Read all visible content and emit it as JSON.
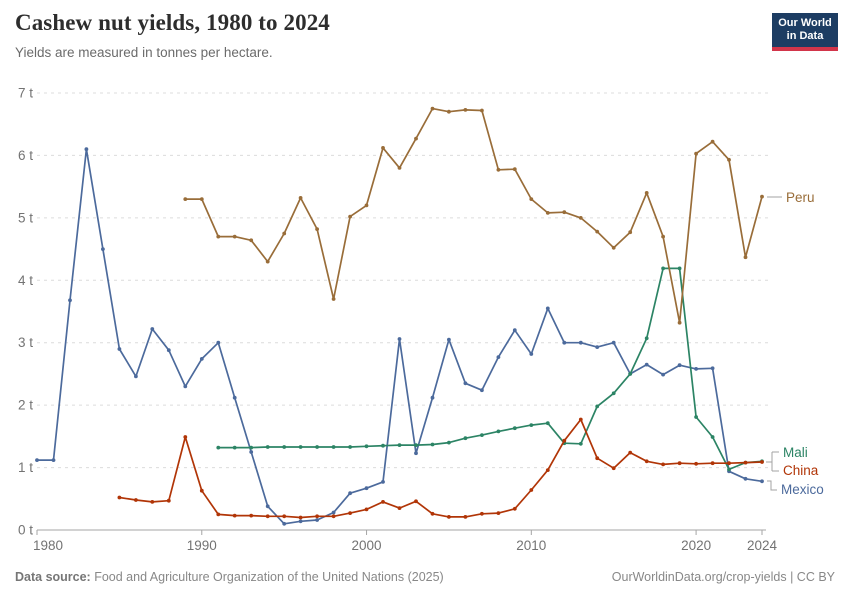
{
  "header": {
    "title": "Cashew nut yields, 1980 to 2024",
    "subtitle": "Yields are measured in tonnes per hectare.",
    "logo": {
      "line1": "Our World",
      "line2": "in Data",
      "bg_color": "#1d3d63",
      "accent_color": "#d2354a"
    }
  },
  "chart_data": {
    "type": "line",
    "title": "Cashew nut yields, 1980 to 2024",
    "unit": "tonnes per hectare",
    "xlabel": "",
    "ylabel": "",
    "xlim": [
      1980,
      2024
    ],
    "ylim": [
      0,
      7
    ],
    "grid": "horizontal dashed",
    "legend_position": "line-end labels (right side)",
    "x_ticks": [
      {
        "value": 1980,
        "label": "1980"
      },
      {
        "value": 1990,
        "label": "1990"
      },
      {
        "value": 2000,
        "label": "2000"
      },
      {
        "value": 2010,
        "label": "2010"
      },
      {
        "value": 2020,
        "label": "2020"
      },
      {
        "value": 2024,
        "label": "2024"
      }
    ],
    "y_ticks": [
      {
        "value": 0,
        "label": "0 t"
      },
      {
        "value": 1,
        "label": "1 t"
      },
      {
        "value": 2,
        "label": "2 t"
      },
      {
        "value": 3,
        "label": "3 t"
      },
      {
        "value": 4,
        "label": "4 t"
      },
      {
        "value": 5,
        "label": "5 t"
      },
      {
        "value": 6,
        "label": "6 t"
      },
      {
        "value": 7,
        "label": "7 t"
      }
    ],
    "series": [
      {
        "name": "Mexico",
        "color": "#4C6A9C",
        "points": [
          [
            1980,
            1.12
          ],
          [
            1981,
            1.12
          ],
          [
            1982,
            3.68
          ],
          [
            1983,
            6.1
          ],
          [
            1984,
            4.5
          ],
          [
            1985,
            2.9
          ],
          [
            1986,
            2.46
          ],
          [
            1987,
            3.22
          ],
          [
            1988,
            2.88
          ],
          [
            1989,
            2.3
          ],
          [
            1990,
            2.74
          ],
          [
            1991,
            3.0
          ],
          [
            1992,
            2.12
          ],
          [
            1993,
            1.25
          ],
          [
            1994,
            0.38
          ],
          [
            1995,
            0.1
          ],
          [
            1996,
            0.14
          ],
          [
            1997,
            0.16
          ],
          [
            1998,
            0.28
          ],
          [
            1999,
            0.59
          ],
          [
            2000,
            0.67
          ],
          [
            2001,
            0.77
          ],
          [
            2002,
            3.06
          ],
          [
            2003,
            1.23
          ],
          [
            2004,
            2.12
          ],
          [
            2005,
            3.05
          ],
          [
            2006,
            2.35
          ],
          [
            2007,
            2.24
          ],
          [
            2008,
            2.77
          ],
          [
            2009,
            3.2
          ],
          [
            2010,
            2.82
          ],
          [
            2011,
            3.55
          ],
          [
            2012,
            3.0
          ],
          [
            2013,
            3.0
          ],
          [
            2014,
            2.93
          ],
          [
            2015,
            3.0
          ],
          [
            2016,
            2.5
          ],
          [
            2017,
            2.65
          ],
          [
            2018,
            2.49
          ],
          [
            2019,
            2.64
          ],
          [
            2020,
            2.58
          ],
          [
            2021,
            2.59
          ],
          [
            2022,
            0.94
          ],
          [
            2023,
            0.82
          ],
          [
            2024,
            0.78
          ]
        ]
      },
      {
        "name": "Mali",
        "color": "#2C8465",
        "points": [
          [
            1991,
            1.32
          ],
          [
            1992,
            1.32
          ],
          [
            1993,
            1.32
          ],
          [
            1994,
            1.33
          ],
          [
            1995,
            1.33
          ],
          [
            1996,
            1.33
          ],
          [
            1997,
            1.33
          ],
          [
            1998,
            1.33
          ],
          [
            1999,
            1.33
          ],
          [
            2000,
            1.34
          ],
          [
            2001,
            1.35
          ],
          [
            2002,
            1.36
          ],
          [
            2003,
            1.36
          ],
          [
            2004,
            1.37
          ],
          [
            2005,
            1.4
          ],
          [
            2006,
            1.47
          ],
          [
            2007,
            1.52
          ],
          [
            2008,
            1.58
          ],
          [
            2009,
            1.63
          ],
          [
            2010,
            1.68
          ],
          [
            2011,
            1.71
          ],
          [
            2012,
            1.39
          ],
          [
            2013,
            1.38
          ],
          [
            2014,
            1.98
          ],
          [
            2015,
            2.19
          ],
          [
            2016,
            2.5
          ],
          [
            2017,
            3.07
          ],
          [
            2018,
            4.19
          ],
          [
            2019,
            4.19
          ],
          [
            2020,
            1.81
          ],
          [
            2021,
            1.49
          ],
          [
            2022,
            0.97
          ],
          [
            2023,
            1.08
          ],
          [
            2024,
            1.1
          ]
        ]
      },
      {
        "name": "China",
        "color": "#B13507",
        "points": [
          [
            1985,
            0.52
          ],
          [
            1986,
            0.48
          ],
          [
            1987,
            0.45
          ],
          [
            1988,
            0.47
          ],
          [
            1989,
            1.49
          ],
          [
            1990,
            0.63
          ],
          [
            1991,
            0.25
          ],
          [
            1992,
            0.23
          ],
          [
            1993,
            0.23
          ],
          [
            1994,
            0.22
          ],
          [
            1995,
            0.22
          ],
          [
            1996,
            0.2
          ],
          [
            1997,
            0.22
          ],
          [
            1998,
            0.22
          ],
          [
            1999,
            0.27
          ],
          [
            2000,
            0.33
          ],
          [
            2001,
            0.45
          ],
          [
            2002,
            0.35
          ],
          [
            2003,
            0.46
          ],
          [
            2004,
            0.26
          ],
          [
            2005,
            0.21
          ],
          [
            2006,
            0.21
          ],
          [
            2007,
            0.26
          ],
          [
            2008,
            0.27
          ],
          [
            2009,
            0.34
          ],
          [
            2010,
            0.64
          ],
          [
            2011,
            0.96
          ],
          [
            2012,
            1.43
          ],
          [
            2013,
            1.77
          ],
          [
            2014,
            1.15
          ],
          [
            2015,
            0.99
          ],
          [
            2016,
            1.24
          ],
          [
            2017,
            1.1
          ],
          [
            2018,
            1.05
          ],
          [
            2019,
            1.07
          ],
          [
            2020,
            1.06
          ],
          [
            2021,
            1.07
          ],
          [
            2022,
            1.07
          ],
          [
            2023,
            1.08
          ],
          [
            2024,
            1.09
          ]
        ]
      },
      {
        "name": "Peru",
        "color": "#996D39",
        "points": [
          [
            1989,
            5.3
          ],
          [
            1990,
            5.3
          ],
          [
            1991,
            4.7
          ],
          [
            1992,
            4.7
          ],
          [
            1993,
            4.64
          ],
          [
            1994,
            4.3
          ],
          [
            1995,
            4.75
          ],
          [
            1996,
            5.32
          ],
          [
            1997,
            4.82
          ],
          [
            1998,
            3.7
          ],
          [
            1999,
            5.02
          ],
          [
            2000,
            5.2
          ],
          [
            2001,
            6.12
          ],
          [
            2002,
            5.8
          ],
          [
            2003,
            6.27
          ],
          [
            2004,
            6.75
          ],
          [
            2005,
            6.7
          ],
          [
            2006,
            6.73
          ],
          [
            2007,
            6.72
          ],
          [
            2008,
            5.77
          ],
          [
            2009,
            5.78
          ],
          [
            2010,
            5.3
          ],
          [
            2011,
            5.08
          ],
          [
            2012,
            5.09
          ],
          [
            2013,
            5.0
          ],
          [
            2014,
            4.78
          ],
          [
            2015,
            4.52
          ],
          [
            2016,
            4.77
          ],
          [
            2017,
            5.4
          ],
          [
            2018,
            4.7
          ],
          [
            2019,
            3.32
          ],
          [
            2020,
            6.03
          ],
          [
            2021,
            6.22
          ],
          [
            2022,
            5.93
          ],
          [
            2023,
            4.37
          ],
          [
            2024,
            5.34
          ]
        ]
      }
    ]
  },
  "footer": {
    "source_label": "Data source:",
    "source_text": " Food and Agriculture Organization of the United Nations (2025)",
    "link_text": "OurWorldinData.org/crop-yields | CC BY"
  }
}
